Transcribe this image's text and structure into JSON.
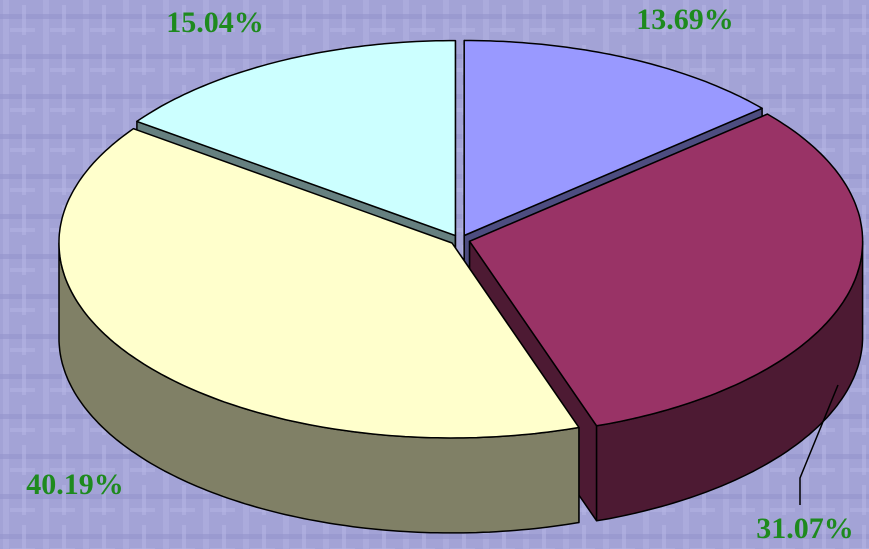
{
  "chart_data": {
    "type": "pie",
    "values": [
      13.69,
      31.07,
      40.19,
      15.04
    ],
    "value_labels": [
      "13.69%",
      "31.07%",
      "40.19%",
      "15.04%"
    ],
    "colors": [
      "#9999ff",
      "#993366",
      "#ffffcc",
      "#ccffff"
    ]
  }
}
